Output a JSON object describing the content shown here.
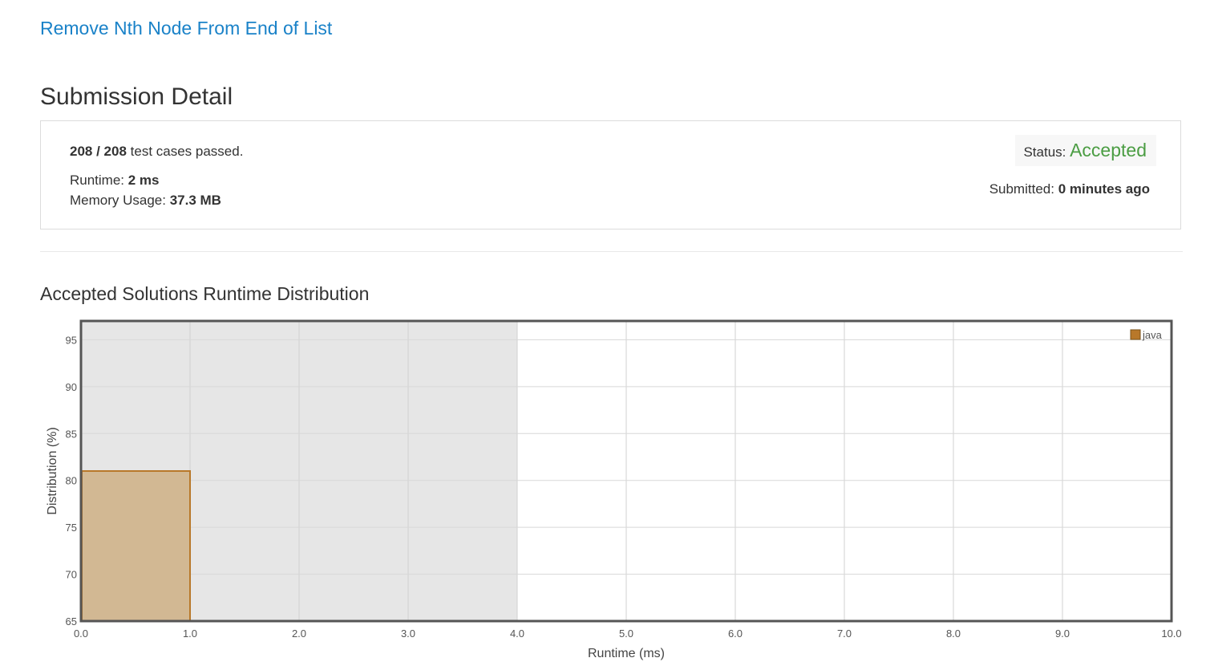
{
  "problem": {
    "title": "Remove Nth Node From End of List"
  },
  "page": {
    "title": "Submission Detail"
  },
  "result": {
    "passed": "208",
    "separator": " / ",
    "total": "208",
    "passed_suffix": " test cases passed.",
    "runtime_label": "Runtime: ",
    "runtime_value": "2 ms",
    "memory_label": "Memory Usage: ",
    "memory_value": "37.3 MB",
    "status_label": "Status: ",
    "status_value": "Accepted",
    "submitted_label": "Submitted: ",
    "submitted_value": "0 minutes ago"
  },
  "colors": {
    "link": "#1a82c8",
    "accepted": "#4b9d43",
    "bar_fill": "#d2b893",
    "bar_stroke": "#b8782a",
    "highlight_region": "#e6e6e6"
  },
  "chart_heading": "Accepted Solutions Runtime Distribution",
  "chart_data": {
    "type": "bar",
    "title": "",
    "xlabel": "Runtime (ms)",
    "ylabel": "Distribution (%)",
    "xlim": [
      0,
      10
    ],
    "ylim": [
      65,
      97
    ],
    "x_ticks": [
      "0.0",
      "1.0",
      "2.0",
      "3.0",
      "4.0",
      "5.0",
      "6.0",
      "7.0",
      "8.0",
      "9.0",
      "10.0"
    ],
    "y_ticks": [
      "65",
      "70",
      "75",
      "80",
      "85",
      "90",
      "95"
    ],
    "grid": true,
    "legend_position": "top-right",
    "highlight_x_range": [
      0,
      4
    ],
    "series": [
      {
        "name": "java",
        "bars": [
          {
            "x0": 0,
            "x1": 1,
            "value": 81
          }
        ]
      }
    ]
  }
}
